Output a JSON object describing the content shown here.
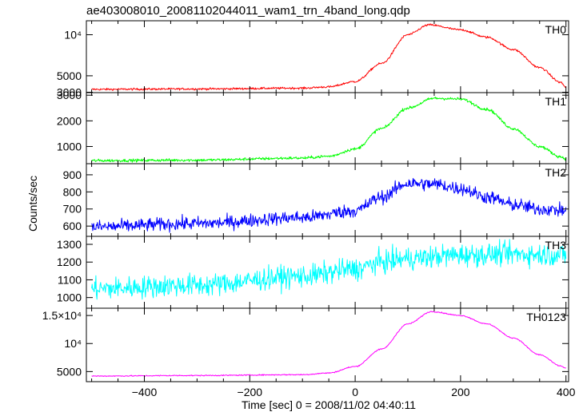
{
  "chart_data": {
    "type": "line",
    "title": "ae403008010_20081102044011_wam1_trn_4band_long.qdp",
    "xlabel": "Time [sec] 0 = 2008/11/02 04:40:11",
    "ylabel": "Counts/sec",
    "xlim": [
      -510,
      405
    ],
    "x_ticks": [
      -400,
      -200,
      0,
      200,
      400
    ],
    "x_tick_labels": [
      "−400",
      "−200",
      "0",
      "200",
      "400"
    ],
    "panels": [
      {
        "name": "TH0",
        "color": "#ff0000",
        "ylim": [
          2950,
          11700
        ],
        "y_ticks": [
          3000,
          5000,
          10000
        ],
        "y_tick_labels": [
          "3000",
          "5000",
          "10⁴"
        ],
        "noise": 90,
        "shape": {
          "x": [
            -500,
            -300,
            -100,
            -50,
            0,
            50,
            100,
            140,
            200,
            250,
            300,
            350,
            390,
            400
          ],
          "y": [
            3350,
            3400,
            3500,
            3650,
            4300,
            6500,
            10000,
            11200,
            10600,
            9700,
            8200,
            6000,
            4200,
            3600
          ]
        }
      },
      {
        "name": "TH1",
        "color": "#00ff00",
        "ylim": [
          330,
          3100
        ],
        "y_ticks": [
          1000,
          2000,
          3000
        ],
        "y_tick_labels": [
          "1000",
          "2000",
          "3000"
        ],
        "noise": 40,
        "shape": {
          "x": [
            -500,
            -300,
            -100,
            -50,
            0,
            50,
            100,
            150,
            200,
            250,
            300,
            350,
            390,
            400
          ],
          "y": [
            450,
            470,
            550,
            620,
            900,
            1700,
            2500,
            2880,
            2850,
            2450,
            1700,
            1000,
            600,
            520
          ]
        }
      },
      {
        "name": "TH2",
        "color": "#0000ff",
        "ylim": [
          540,
          965
        ],
        "y_ticks": [
          600,
          700,
          800,
          900
        ],
        "y_tick_labels": [
          "600",
          "700",
          "800",
          "900"
        ],
        "noise": 28,
        "shape": {
          "x": [
            -500,
            -300,
            -100,
            0,
            50,
            100,
            150,
            200,
            250,
            300,
            350,
            400
          ],
          "y": [
            595,
            615,
            650,
            690,
            770,
            850,
            845,
            820,
            770,
            725,
            700,
            690
          ]
        }
      },
      {
        "name": "TH3",
        "color": "#00ffff",
        "ylim": [
          940,
          1345
        ],
        "y_ticks": [
          1000,
          1100,
          1200,
          1300
        ],
        "y_tick_labels": [
          "1000",
          "1100",
          "1200",
          "1300"
        ],
        "noise": 45,
        "shape": {
          "x": [
            -500,
            -300,
            -100,
            0,
            50,
            100,
            200,
            300,
            400
          ],
          "y": [
            1050,
            1070,
            1120,
            1160,
            1200,
            1220,
            1240,
            1245,
            1240
          ]
        }
      },
      {
        "name": "TH0123",
        "color": "#ff00ff",
        "ylim": [
          3200,
          16300
        ],
        "y_ticks": [
          5000,
          10000,
          15000
        ],
        "y_tick_labels": [
          "5000",
          "10⁴",
          "1.5×10⁴"
        ],
        "noise": 70,
        "shape": {
          "x": [
            -500,
            -300,
            -100,
            -50,
            0,
            50,
            100,
            145,
            200,
            250,
            300,
            350,
            390,
            400
          ],
          "y": [
            4200,
            4300,
            4450,
            4750,
            5900,
            9000,
            13500,
            15700,
            15000,
            13500,
            11000,
            8000,
            6000,
            5600
          ]
        }
      }
    ]
  }
}
